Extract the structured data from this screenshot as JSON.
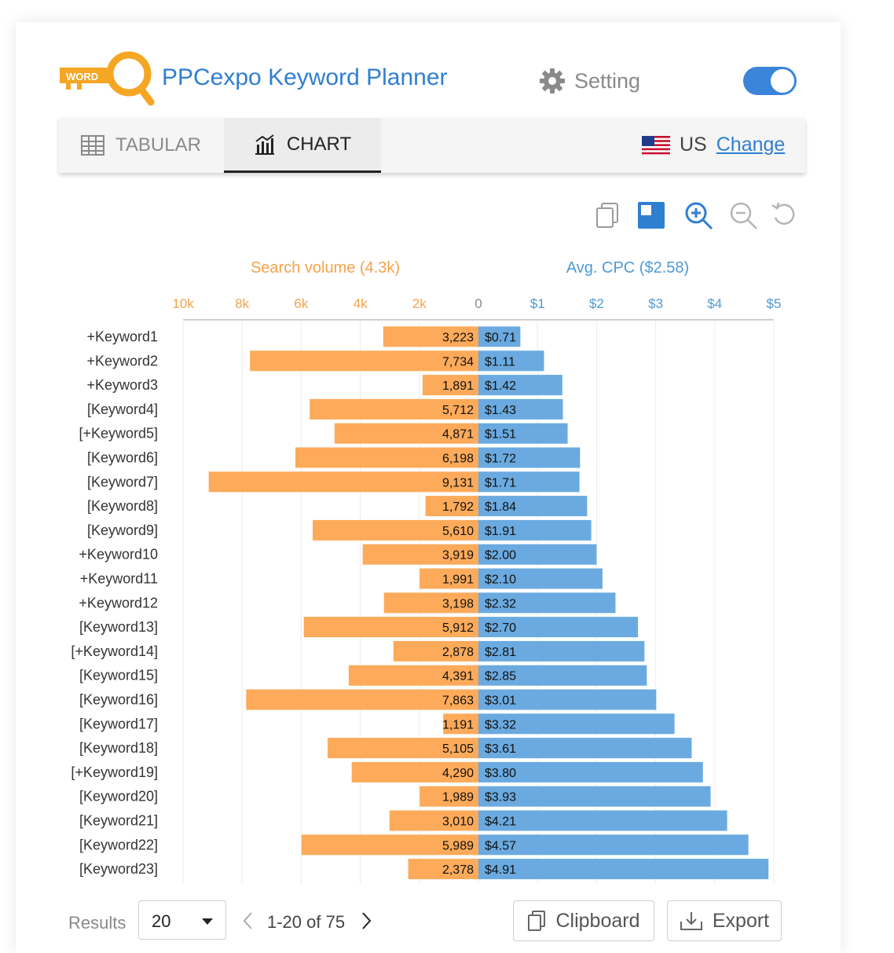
{
  "app": {
    "title": "PPCexpo Keyword Planner",
    "logo_text": "WORD",
    "setting_label": "Setting",
    "toggle_on": true
  },
  "tabs": {
    "tabular_label": "TABULAR",
    "chart_label": "CHART",
    "active": "CHART"
  },
  "country": {
    "code": "US",
    "change_label": "Change"
  },
  "toolbar": {
    "icons": [
      "copy-icon",
      "square-icon",
      "zoom-in-icon",
      "zoom-out-icon",
      "reset-icon"
    ]
  },
  "colors": {
    "volume": "#FDAA5A",
    "cpc": "#6AAAE0",
    "volume_text": "#F5A24A",
    "cpc_text": "#4E9AD4",
    "brand_blue": "#2F7FD0"
  },
  "chart_data": {
    "type": "bar",
    "orientation": "horizontal-diverging",
    "left_title": "Search volume (4.3k)",
    "right_title": "Avg. CPC ($2.58)",
    "left_ticks": [
      "10k",
      "8k",
      "6k",
      "4k",
      "2k",
      "0"
    ],
    "right_ticks": [
      "$1",
      "$2",
      "$3",
      "$4",
      "$5"
    ],
    "left_range": [
      0,
      10000
    ],
    "right_range": [
      0,
      5
    ],
    "grid": true,
    "categories": [
      "+Keyword1",
      "+Keyword2",
      "+Keyword3",
      "[Keyword4]",
      "[+Keyword5]",
      "[Keyword6]",
      "[Keyword7]",
      "[Keyword8]",
      "[Keyword9]",
      "+Keyword10",
      "+Keyword11",
      "+Keyword12",
      "[Keyword13]",
      "[+Keyword14]",
      "[Keyword15]",
      "[Keyword16]",
      "[Keyword17]",
      "[Keyword18]",
      "[+Keyword19]",
      "[Keyword20]",
      "[Keyword21]",
      "[Keyword22]",
      "[Keyword23]"
    ],
    "series": [
      {
        "name": "Search volume",
        "values": [
          3223,
          7734,
          1891,
          5712,
          4871,
          6198,
          9131,
          1792,
          5610,
          3919,
          1991,
          3198,
          5912,
          2878,
          4391,
          7863,
          1191,
          5105,
          4290,
          1989,
          3010,
          5989,
          2378
        ],
        "labels": [
          "3,223",
          "7,734",
          "1,891",
          "5,712",
          "4,871",
          "6,198",
          "9,131",
          "1,792",
          "5,610",
          "3,919",
          "1,991",
          "3,198",
          "5,912",
          "2,878",
          "4,391",
          "7,863",
          "1,191",
          "5,105",
          "4,290",
          "1,989",
          "3,010",
          "5,989",
          "2,378"
        ]
      },
      {
        "name": "Avg. CPC",
        "values": [
          0.71,
          1.11,
          1.42,
          1.43,
          1.51,
          1.72,
          1.71,
          1.84,
          1.91,
          2.0,
          2.1,
          2.32,
          2.7,
          2.81,
          2.85,
          3.01,
          3.32,
          3.61,
          3.8,
          3.93,
          4.21,
          4.57,
          4.91
        ],
        "labels": [
          "$0.71",
          "$1.11",
          "$1.42",
          "$1.43",
          "$1.51",
          "$1.72",
          "$1.71",
          "$1.84",
          "$1.91",
          "$2.00",
          "$2.10",
          "$2.32",
          "$2.70",
          "$2.81",
          "$2.85",
          "$3.01",
          "$3.32",
          "$3.61",
          "$3.80",
          "$3.93",
          "$4.21",
          "$4.57",
          "$4.91"
        ]
      }
    ]
  },
  "pagination": {
    "results_label": "Results",
    "page_size": "20",
    "range": "1-20 of 75"
  },
  "actions": {
    "clipboard_label": "Clipboard",
    "export_label": "Export"
  }
}
